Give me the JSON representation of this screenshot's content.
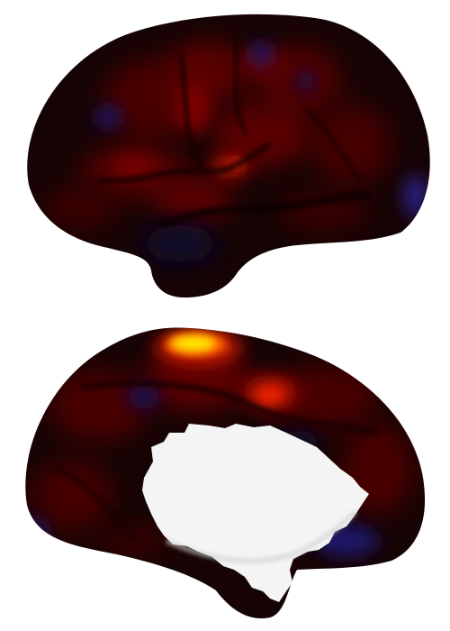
{
  "figure": {
    "description_visible_text": "",
    "views": [
      {
        "id": "lateral",
        "label_visible": false
      },
      {
        "id": "medial",
        "label_visible": false
      }
    ]
  },
  "colors": {
    "background": "#ffffff",
    "base_dark": "#140203",
    "activation_low": "#5a0000",
    "activation_mid": "#b21000",
    "activation_high": "#ff4a00",
    "activation_peak": "#fff000",
    "negative_blue": "#1a1466",
    "medial_wall": "#f4f4f4"
  }
}
